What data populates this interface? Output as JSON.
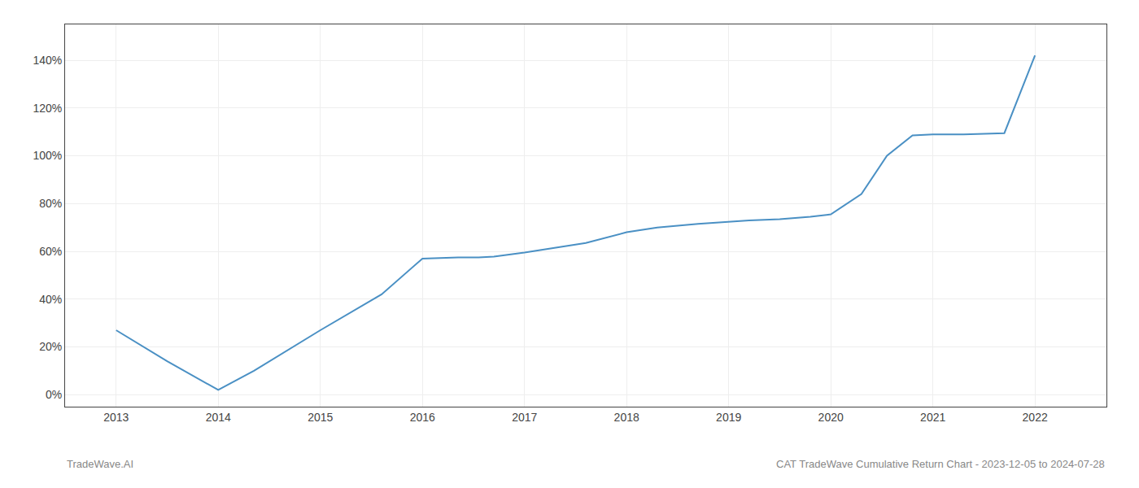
{
  "chart_data": {
    "type": "line",
    "x": [
      2013.0,
      2013.5,
      2014.0,
      2014.35,
      2015.0,
      2015.6,
      2016.0,
      2016.35,
      2016.55,
      2016.7,
      2017.0,
      2017.3,
      2017.6,
      2018.0,
      2018.3,
      2018.7,
      2019.0,
      2019.2,
      2019.5,
      2019.65,
      2019.8,
      2020.0,
      2020.3,
      2020.55,
      2020.8,
      2021.0,
      2021.3,
      2021.7,
      2022.0
    ],
    "values": [
      0.27,
      0.14,
      0.02,
      0.1,
      0.27,
      0.42,
      0.57,
      0.575,
      0.575,
      0.578,
      0.595,
      0.615,
      0.635,
      0.68,
      0.7,
      0.715,
      0.725,
      0.73,
      0.735,
      0.74,
      0.745,
      0.755,
      0.84,
      1.0,
      1.085,
      1.09,
      1.09,
      1.095,
      1.42
    ],
    "color": "#4a90c4",
    "xlim": [
      2012.5,
      2022.7
    ],
    "ylim": [
      -0.05,
      1.55
    ],
    "xticks": [
      2013,
      2014,
      2015,
      2016,
      2017,
      2018,
      2019,
      2020,
      2021,
      2022
    ],
    "yticks": [
      {
        "value": 0.0,
        "label": "0%"
      },
      {
        "value": 0.2,
        "label": "20%"
      },
      {
        "value": 0.4,
        "label": "40%"
      },
      {
        "value": 0.6,
        "label": "60%"
      },
      {
        "value": 0.8,
        "label": "80%"
      },
      {
        "value": 1.0,
        "label": "100%"
      },
      {
        "value": 1.2,
        "label": "120%"
      },
      {
        "value": 1.4,
        "label": "140%"
      }
    ],
    "grid": true,
    "annotations": [
      "TradeWave.AI",
      "CAT TradeWave Cumulative Return Chart - 2023-12-05 to 2024-07-28"
    ]
  }
}
